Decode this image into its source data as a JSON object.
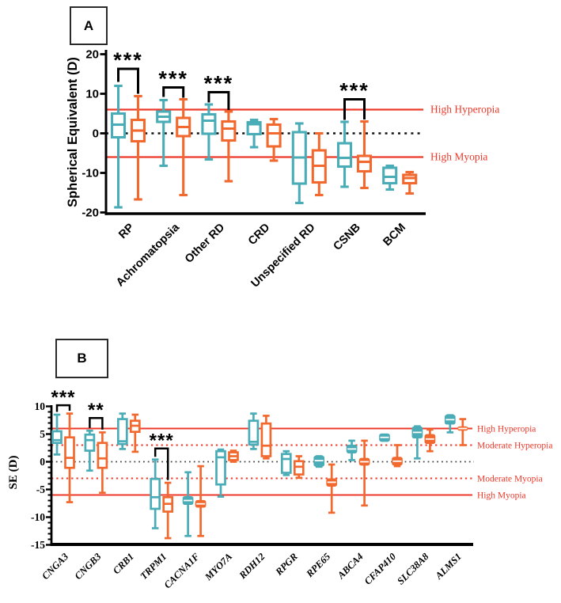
{
  "colors": {
    "teal": "#4AACB6",
    "orange": "#F2692F",
    "red": "#EE3A2B",
    "black": "#000000"
  },
  "chart_data": [
    {
      "id": "A",
      "panel_label": "A",
      "type": "box",
      "ylabel": "Spherical Equivalent (D)",
      "ylim": [
        -20,
        20
      ],
      "yticks": [
        20,
        10,
        0,
        -10,
        -20
      ],
      "minor_tick_step": null,
      "zero_line": true,
      "grid": false,
      "legend": null,
      "ref_lines": [
        {
          "value": 6,
          "style": "solid",
          "label": "High Hyperopia"
        },
        {
          "value": -6,
          "style": "solid",
          "label": "High Myopia"
        }
      ],
      "series_names": [
        "teal",
        "orange"
      ],
      "categories": [
        "RP",
        "Achromatopsia",
        "Other RD",
        "CRD",
        "Unspecified RD",
        "CSNB",
        "BCM"
      ],
      "groups": [
        {
          "label": "RP",
          "teal": {
            "lo": -18.7,
            "q1": -1.0,
            "med": 2.2,
            "q3": 5.0,
            "hi": 12.0
          },
          "orange": {
            "lo": -16.7,
            "q1": -2.0,
            "med": 0.7,
            "q3": 3.4,
            "hi": 9.4
          }
        },
        {
          "label": "Achromatopsia",
          "teal": {
            "lo": -8.2,
            "q1": 2.9,
            "med": 4.2,
            "q3": 5.5,
            "hi": 8.4
          },
          "orange": {
            "lo": -15.6,
            "q1": -0.7,
            "med": 1.6,
            "q3": 3.9,
            "hi": 8.6
          }
        },
        {
          "label": "Other RD",
          "teal": {
            "lo": -6.6,
            "q1": -0.1,
            "med": 3.2,
            "q3": 4.8,
            "hi": 7.3
          },
          "orange": {
            "lo": -12.1,
            "q1": -1.8,
            "med": 1.2,
            "q3": 3.0,
            "hi": 5.5
          }
        },
        {
          "label": "CRD",
          "teal": {
            "lo": -3.5,
            "q1": -0.2,
            "med": 2.3,
            "q3": 2.8,
            "hi": 3.4
          },
          "orange": {
            "lo": -6.9,
            "q1": -3.3,
            "med": 0.0,
            "q3": 2.2,
            "hi": 3.6
          }
        },
        {
          "label": "Unspecified RD",
          "teal": {
            "lo": -17.6,
            "q1": -12.7,
            "med": -6.1,
            "q3": 0.3,
            "hi": 2.5
          },
          "orange": {
            "lo": -15.6,
            "q1": -12.4,
            "med": -8.2,
            "q3": -4.3,
            "hi": 0.0
          }
        },
        {
          "label": "CSNB",
          "teal": {
            "lo": -13.5,
            "q1": -8.4,
            "med": -6.2,
            "q3": -2.5,
            "hi": 2.9
          },
          "orange": {
            "lo": -13.8,
            "q1": -9.6,
            "med": -7.2,
            "q3": -5.7,
            "hi": 3.0
          }
        },
        {
          "label": "BCM",
          "teal": {
            "lo": -14.2,
            "q1": -12.6,
            "med": -11.0,
            "q3": -8.7,
            "hi": -8.2
          },
          "orange": {
            "lo": -15.2,
            "q1": -12.6,
            "med": -11.3,
            "q3": -10.5,
            "hi": -9.8
          }
        }
      ],
      "significance": [
        {
          "group": 0,
          "label": "***",
          "bar": 16.3,
          "left_end": 13.0,
          "right_end": 10.0
        },
        {
          "group": 1,
          "label": "***",
          "bar": 11.6,
          "left_end": 9.2,
          "right_end": 9.0
        },
        {
          "group": 2,
          "label": "***",
          "bar": 10.4,
          "left_end": 7.8,
          "right_end": 5.9
        },
        {
          "group": 5,
          "label": "***",
          "bar": 8.6,
          "left_end": 3.4,
          "right_end": 3.5
        }
      ]
    },
    {
      "id": "B",
      "panel_label": "B",
      "type": "box",
      "ylabel": "SE (D)",
      "ylim": [
        -15,
        10
      ],
      "yticks": [
        10,
        5,
        0,
        -5,
        -10,
        -15
      ],
      "minor_tick_step": 1,
      "zero_line": true,
      "grid": false,
      "legend": null,
      "ref_lines": [
        {
          "value": 6,
          "style": "solid",
          "label": "High Hyperopia"
        },
        {
          "value": 3,
          "style": "dotted",
          "label": "Moderate Hyperopia"
        },
        {
          "value": -3,
          "style": "dotted",
          "label": "Moderate Myopia"
        },
        {
          "value": -6,
          "style": "solid",
          "label": "High Myopia"
        }
      ],
      "series_names": [
        "teal",
        "orange"
      ],
      "categories": [
        "CNGA3",
        "CNGB3",
        "CRB1",
        "TRPM1",
        "CACNA1F",
        "MYO7A",
        "RDH12",
        "RPGR",
        "RPE65",
        "ABCA4",
        "CFAP410",
        "SLC38A8",
        "ALMS1"
      ],
      "groups": [
        {
          "label": "CNGA3",
          "teal": {
            "lo": 1.3,
            "q1": 3.4,
            "med": 3.9,
            "q3": 5.5,
            "hi": 8.5
          },
          "orange": {
            "lo": -7.3,
            "q1": -1.1,
            "med": 0.7,
            "q3": 4.4,
            "hi": 8.7
          }
        },
        {
          "label": "CNGB3",
          "teal": {
            "lo": -1.6,
            "q1": 2.0,
            "med": 3.9,
            "q3": 4.9,
            "hi": 5.6
          },
          "orange": {
            "lo": -5.6,
            "q1": -1.1,
            "med": 0.6,
            "q3": 3.4,
            "hi": 5.3
          }
        },
        {
          "label": "CRB1",
          "teal": {
            "lo": 2.3,
            "q1": 3.2,
            "med": 3.7,
            "q3": 7.7,
            "hi": 8.7
          },
          "orange": {
            "lo": 1.8,
            "q1": 5.4,
            "med": 6.5,
            "q3": 7.4,
            "hi": 8.5
          }
        },
        {
          "label": "TRPM1",
          "teal": {
            "lo": -12.0,
            "q1": -8.5,
            "med": -6.4,
            "q3": -3.1,
            "hi": 0.4
          },
          "orange": {
            "lo": -13.8,
            "q1": -9.0,
            "med": -7.6,
            "q3": -6.4,
            "hi": -3.8
          }
        },
        {
          "label": "CACNA1F",
          "teal": {
            "lo": -13.4,
            "q1": -7.6,
            "med": -7.0,
            "q3": -6.4,
            "hi": -1.9,
            "filled": true
          },
          "orange": {
            "lo": -13.4,
            "q1": -8.1,
            "med": -7.6,
            "q3": -7.1,
            "hi": -0.8,
            "filled": true
          }
        },
        {
          "label": "MYO7A",
          "teal": {
            "lo": -6.3,
            "q1": -4.1,
            "med": 0.8,
            "q3": 1.9,
            "hi": 2.2
          },
          "orange": {
            "lo": 0.0,
            "q1": 0.3,
            "med": 1.0,
            "q3": 1.7,
            "hi": 2.0
          }
        },
        {
          "label": "RDH12",
          "teal": {
            "lo": 2.3,
            "q1": 3.1,
            "med": 3.6,
            "q3": 7.4,
            "hi": 8.7
          },
          "orange": {
            "lo": 0.6,
            "q1": 1.0,
            "med": 2.9,
            "q3": 6.9,
            "hi": 8.3
          }
        },
        {
          "label": "RPGR",
          "teal": {
            "lo": -2.4,
            "q1": -2.0,
            "med": 0.5,
            "q3": 1.4,
            "hi": 1.9
          },
          "orange": {
            "lo": -2.9,
            "q1": -2.3,
            "med": -0.9,
            "q3": 0.1,
            "hi": 1.0
          }
        },
        {
          "label": "RPE65",
          "teal": {
            "lo": -0.9,
            "q1": -0.7,
            "med": 0.2,
            "q3": 0.9,
            "hi": 1.0,
            "filled": true
          },
          "orange": {
            "lo": -9.2,
            "q1": -4.3,
            "med": -3.7,
            "q3": -3.2,
            "hi": -0.5,
            "filled": true
          }
        },
        {
          "label": "ABCA4",
          "teal": {
            "lo": 0.3,
            "q1": 1.7,
            "med": 2.3,
            "q3": 2.9,
            "hi": 3.8,
            "filled": true
          },
          "orange": {
            "lo": -7.9,
            "q1": -0.5,
            "med": 0.0,
            "q3": 0.5,
            "hi": 3.8,
            "filled": true
          }
        },
        {
          "label": "CFAP410",
          "teal": {
            "lo": 3.8,
            "q1": 3.8,
            "med": 4.4,
            "q3": 4.9,
            "hi": 4.9,
            "filled": true
          },
          "orange": {
            "lo": -0.8,
            "q1": -0.5,
            "med": 0.1,
            "q3": 0.7,
            "hi": 3.0,
            "filled": true
          }
        },
        {
          "label": "SLC38A8",
          "teal": {
            "lo": 0.6,
            "q1": 4.4,
            "med": 5.3,
            "q3": 6.2,
            "hi": 6.4,
            "filled": true
          },
          "orange": {
            "lo": 1.9,
            "q1": 3.4,
            "med": 4.1,
            "q3": 4.8,
            "hi": 5.8,
            "filled": true
          }
        },
        {
          "label": "ALMS1",
          "teal": {
            "lo": 5.3,
            "q1": 6.9,
            "med": 7.6,
            "q3": 8.3,
            "hi": 8.4,
            "filled": true
          },
          "orange": {
            "lo": 3.0,
            "q1": 5.8,
            "med": 6.0,
            "q3": 6.2,
            "hi": 7.7,
            "filled": true
          }
        }
      ],
      "significance": [
        {
          "group": 0,
          "label": "***",
          "bar": 10.2,
          "left_end": 9.0,
          "right_end": 9.2
        },
        {
          "group": 1,
          "label": "**",
          "bar": 7.9,
          "left_end": 6.1,
          "right_end": 5.8
        },
        {
          "group": 3,
          "label": "***",
          "bar": 2.4,
          "left_end": 0.9,
          "right_end": -3.3
        }
      ]
    }
  ]
}
